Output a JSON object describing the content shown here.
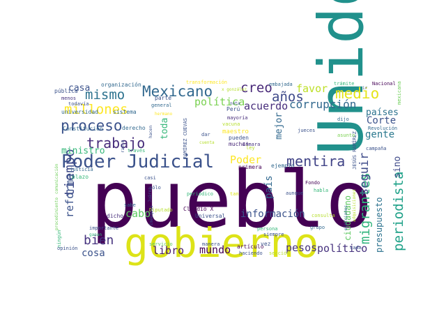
{
  "palette": {
    "dark_purple": "#440154",
    "purple": "#482677",
    "indigo": "#3e4a89",
    "blue": "#31688e",
    "teal_blue": "#26828e",
    "teal": "#1f9e89",
    "green": "#35b779",
    "light_green": "#6ece58",
    "lime": "#b5de2b",
    "yellow": "#fde725"
  },
  "words": [
    {
      "text": "pueblo",
      "color": "#440154"
    },
    {
      "text": "Unido",
      "color": "#21918c"
    },
    {
      "text": "gobierno",
      "color": "#dde318"
    },
    {
      "text": "Poder Judicial",
      "color": "#3b528b"
    },
    {
      "text": "Mexicano",
      "color": "#31688e"
    },
    {
      "text": "mismo",
      "color": "#2c728e"
    },
    {
      "text": "millones",
      "color": "#fde725"
    },
    {
      "text": "proceso",
      "color": "#3b528b"
    },
    {
      "text": "tiempo",
      "color": "#3e4a89"
    },
    {
      "text": "trabajo",
      "color": "#472d7b"
    },
    {
      "text": "medio",
      "color": "#e5e419"
    },
    {
      "text": "años",
      "color": "#3e4989"
    },
    {
      "text": "creo",
      "color": "#482878"
    },
    {
      "text": "mentira",
      "color": "#414487"
    },
    {
      "text": "migrantes",
      "color": "#2fb47c"
    },
    {
      "text": "periodista",
      "color": "#1fa188"
    },
    {
      "text": "seguir",
      "color": "#3e4a89"
    },
    {
      "text": "corrupción",
      "color": "#31688e"
    },
    {
      "text": "política",
      "color": "#7ad151"
    },
    {
      "text": "acuerdo",
      "color": "#472d7b"
    },
    {
      "text": "favor",
      "color": "#bddf26"
    },
    {
      "text": "casa",
      "color": "#3b528b"
    },
    {
      "text": "bien",
      "color": "#46337f"
    },
    {
      "text": "Poder",
      "color": "#fde725"
    },
    {
      "text": "información",
      "color": "#3b528b"
    },
    {
      "text": "pesos",
      "color": "#46327e"
    },
    {
      "text": "político",
      "color": "#46327e"
    },
    {
      "text": "mundo",
      "color": "#440154"
    },
    {
      "text": "libro",
      "color": "#481a6c"
    },
    {
      "text": "cosa",
      "color": "#3b528b"
    },
    {
      "text": "reforma",
      "color": "#3b528b"
    },
    {
      "text": "cabo",
      "color": "#5ec962"
    },
    {
      "text": "ministro",
      "color": "#35b779"
    },
    {
      "text": "ciudadano",
      "color": "#5ec962"
    },
    {
      "text": "país",
      "color": "#31688e"
    },
    {
      "text": "presupuesto",
      "color": "#2c728e"
    },
    {
      "text": "gente",
      "color": "#2a788e"
    },
    {
      "text": "Corte",
      "color": "#3b528b"
    },
    {
      "text": "países",
      "color": "#2c728e"
    },
    {
      "text": "sino",
      "color": "#3e4a89"
    },
    {
      "text": "mejor",
      "color": "#31688e"
    },
    {
      "text": "toda",
      "color": "#35b779"
    },
    {
      "text": "organización",
      "color": "#31688e"
    },
    {
      "text": "universidad",
      "color": "#31688e"
    },
    {
      "text": "sistema",
      "color": "#31688e"
    },
    {
      "text": "Constitución",
      "color": "#31688e"
    },
    {
      "text": "derecho",
      "color": "#31688e"
    },
    {
      "text": "pública",
      "color": "#3b528b"
    },
    {
      "text": "menos",
      "color": "#46337f"
    },
    {
      "text": "parte",
      "color": "#3b528b"
    },
    {
      "text": "general",
      "color": "#31688e"
    },
    {
      "text": "transformación",
      "color": "#fde725"
    },
    {
      "text": "embajada",
      "color": "#31688e"
    },
    {
      "text": "trámite",
      "color": "#35b779"
    },
    {
      "text": "Nacional",
      "color": "#440154"
    },
    {
      "text": "mexicana",
      "color": "#6ece58"
    },
    {
      "text": "Perú",
      "color": "#3b528b"
    },
    {
      "text": "nota",
      "color": "#3b528b"
    },
    {
      "text": "mayoría",
      "color": "#472d7b"
    },
    {
      "text": "vacuna",
      "color": "#b5de2b"
    },
    {
      "text": "maestro",
      "color": "#fde725"
    },
    {
      "text": "pueden",
      "color": "#3b528b"
    },
    {
      "text": "muchas",
      "color": "#482878"
    },
    {
      "text": "RAMÍREZ CUEVAS",
      "color": "#3b528b"
    },
    {
      "text": "JESÚS RAMÍREZ",
      "color": "#3b528b"
    },
    {
      "text": "jueces",
      "color": "#3b528b"
    },
    {
      "text": "Cámara",
      "color": "#46337f"
    },
    {
      "text": "dijo",
      "color": "#31688e"
    },
    {
      "text": "Revolución",
      "color": "#31688e"
    },
    {
      "text": "asunto",
      "color": "#7ad151"
    },
    {
      "text": "campaña",
      "color": "#3b528b"
    },
    {
      "text": "primera",
      "color": "#440154"
    },
    {
      "text": "ejemplo",
      "color": "#31688e"
    },
    {
      "text": "Fondo",
      "color": "#440154"
    },
    {
      "text": "habla",
      "color": "#35b779"
    },
    {
      "text": "aunque",
      "color": "#3b528b"
    },
    {
      "text": "consulta",
      "color": "#b5de2b"
    },
    {
      "text": "justicia",
      "color": "#31688e"
    },
    {
      "text": "plazo",
      "color": "#35b779"
    },
    {
      "text": "casi",
      "color": "#3b528b"
    },
    {
      "text": "sólo",
      "color": "#3b528b"
    },
    {
      "text": "Juárez",
      "color": "#3b528b"
    },
    {
      "text": "sabe",
      "color": "#31688e"
    },
    {
      "text": "dicho",
      "color": "#472d7b"
    },
    {
      "text": "Diputado",
      "color": "#b5de2b"
    },
    {
      "text": "Claudio X",
      "color": "#440154"
    },
    {
      "text": "Universal",
      "color": "#3b528b"
    },
    {
      "text": "periódico",
      "color": "#35b779"
    },
    {
      "text": "tan",
      "color": "#dde318"
    },
    {
      "text": "ley",
      "color": "#b5de2b"
    },
    {
      "text": "importante",
      "color": "#3b528b"
    },
    {
      "text": "ningún",
      "color": "#35b779"
    },
    {
      "text": "opinión",
      "color": "#3b528b"
    },
    {
      "text": "servicio",
      "color": "#5ec962"
    },
    {
      "text": "manera",
      "color": "#3b528b"
    },
    {
      "text": "artículo",
      "color": "#440154"
    },
    {
      "text": "haciendo",
      "color": "#3b528b"
    },
    {
      "text": "sección",
      "color": "#b5de2b"
    },
    {
      "text": "persona",
      "color": "#35b779"
    },
    {
      "text": "siempre",
      "color": "#3b528b"
    },
    {
      "text": "vez",
      "color": "#3b528b"
    },
    {
      "text": "cada",
      "color": "#3b528b"
    },
    {
      "text": "elecciones",
      "color": "#31688e"
    },
    {
      "text": "grupo",
      "color": "#31688e"
    },
    {
      "text": "hacen",
      "color": "#3b528b"
    },
    {
      "text": "dar",
      "color": "#3b528b"
    },
    {
      "text": "cuenta",
      "color": "#b5de2b"
    },
    {
      "text": "través",
      "color": "#35b779"
    },
    {
      "text": "radio",
      "color": "#3b528b"
    },
    {
      "text": "Emeequis",
      "color": "#3b528b"
    },
    {
      "text": "ganan",
      "color": "#35b779"
    },
    {
      "text": "procedimiento",
      "color": "#6ece58"
    },
    {
      "text": "comunicación",
      "color": "#6ece58"
    },
    {
      "text": "todavía",
      "color": "#3b528b"
    },
    {
      "text": "adquisiciones",
      "color": "#b5de2b"
    },
    {
      "text": "x gonzález",
      "color": "#b5de2b"
    },
    {
      "text": "hermano",
      "color": "#fde725"
    },
    {
      "text": "ir",
      "color": "#3b528b"
    }
  ]
}
